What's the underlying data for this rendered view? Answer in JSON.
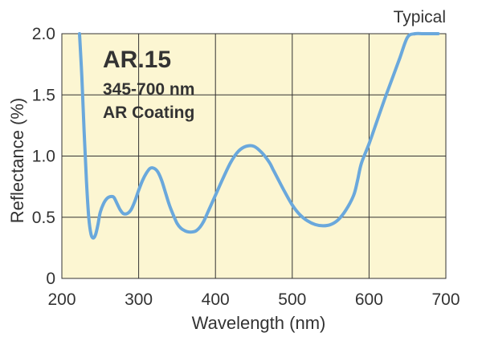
{
  "chart_data": {
    "type": "line",
    "title": "AR.15",
    "annotations": [
      "345-700 nm",
      "AR Coating"
    ],
    "corner_note": "Typical",
    "xlabel": "Wavelength (nm)",
    "ylabel": "Reflectance (%)",
    "xlim": [
      200,
      700
    ],
    "ylim": [
      0,
      2.0
    ],
    "x_ticks": [
      200,
      300,
      400,
      500,
      600,
      700
    ],
    "x_tick_labels": [
      "200",
      "300",
      "400",
      "500",
      "600",
      "700"
    ],
    "y_ticks": [
      0,
      0.5,
      1.0,
      1.5,
      2.0
    ],
    "y_tick_labels": [
      "0",
      "0.5",
      "1.0",
      "1.5",
      "2.0"
    ],
    "grid": true,
    "colors": {
      "plot_background": "#fcf6d2",
      "line": "#6aa8dc",
      "grid": "#333333",
      "text": "#333333"
    },
    "series": [
      {
        "name": "Reflectance",
        "x": [
          223,
          226,
          229,
          232,
          235,
          238,
          241,
          244,
          247,
          250,
          255,
          260,
          265,
          268,
          272,
          276,
          280,
          285,
          290,
          295,
          300,
          305,
          310,
          315,
          320,
          325,
          330,
          335,
          340,
          345,
          350,
          355,
          360,
          365,
          370,
          375,
          380,
          385,
          390,
          395,
          400,
          410,
          420,
          430,
          440,
          450,
          460,
          470,
          475,
          480,
          490,
          500,
          510,
          520,
          530,
          540,
          550,
          560,
          570,
          580,
          585,
          590,
          600,
          610,
          620,
          630,
          640,
          650,
          660,
          670,
          680,
          690
        ],
        "y": [
          2.0,
          1.65,
          1.2,
          0.8,
          0.5,
          0.36,
          0.33,
          0.36,
          0.44,
          0.54,
          0.62,
          0.66,
          0.67,
          0.66,
          0.61,
          0.56,
          0.53,
          0.53,
          0.56,
          0.63,
          0.72,
          0.8,
          0.86,
          0.9,
          0.9,
          0.87,
          0.8,
          0.7,
          0.6,
          0.52,
          0.45,
          0.41,
          0.39,
          0.38,
          0.38,
          0.39,
          0.42,
          0.47,
          0.54,
          0.61,
          0.68,
          0.82,
          0.95,
          1.04,
          1.08,
          1.08,
          1.03,
          0.95,
          0.89,
          0.83,
          0.71,
          0.6,
          0.52,
          0.47,
          0.44,
          0.43,
          0.44,
          0.48,
          0.56,
          0.68,
          0.8,
          0.94,
          1.1,
          1.28,
          1.46,
          1.63,
          1.8,
          1.97,
          2.0,
          2.0,
          2.0,
          2.0
        ]
      }
    ]
  }
}
